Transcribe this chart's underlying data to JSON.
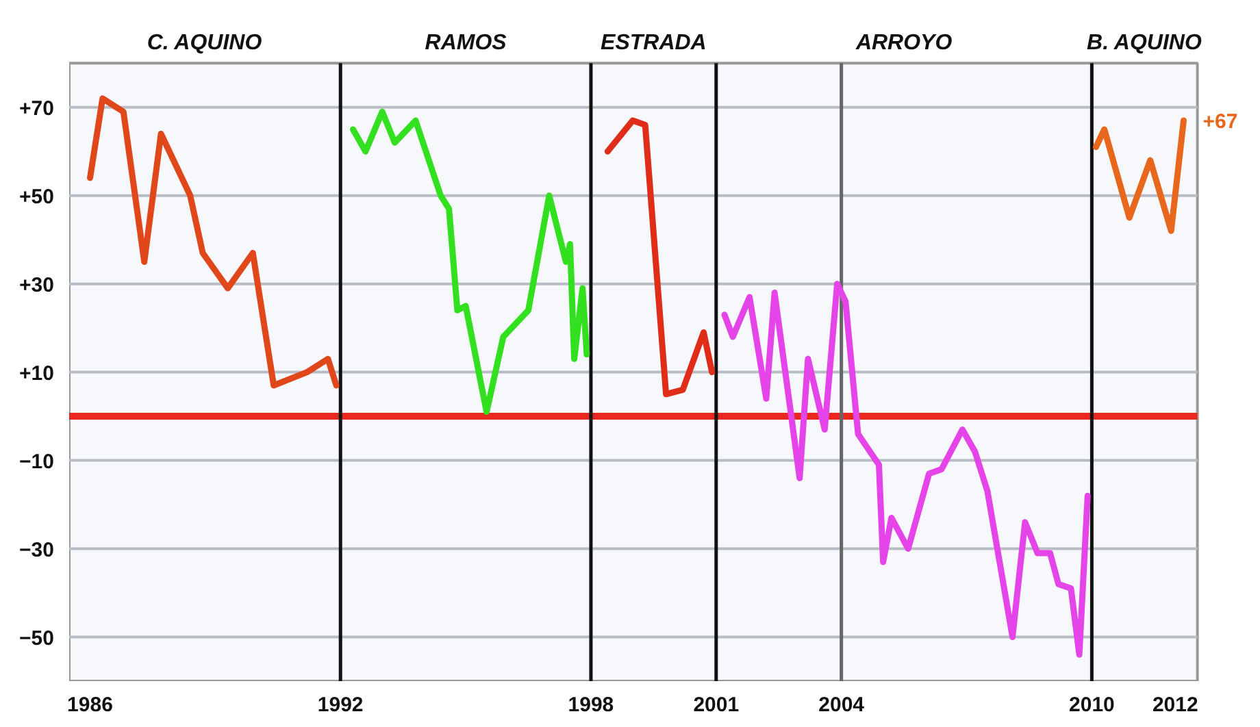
{
  "chart_data": {
    "type": "line",
    "xlim": [
      1985.5,
      2012.53
    ],
    "ylim": [
      -60,
      80
    ],
    "xticks": [
      1986,
      1992,
      1998,
      2001,
      2004,
      2010,
      2012
    ],
    "yticks": [
      {
        "value": 70,
        "label": "+70"
      },
      {
        "value": 50,
        "label": "+50"
      },
      {
        "value": 30,
        "label": "+30"
      },
      {
        "value": 10,
        "label": "+10"
      },
      -10,
      -30,
      -50
    ],
    "grid": "y",
    "line_style": "solid",
    "series": [
      {
        "color": "#e0481c",
        "x": [
          1986.0,
          1986.3,
          1986.8,
          1987.3,
          1987.7,
          1988.4,
          1988.7,
          1989.3,
          1989.9,
          1990.4,
          1991.2,
          1991.7,
          1991.9
        ],
        "values": [
          54,
          72,
          69,
          35,
          64,
          50,
          37,
          29,
          37,
          7,
          10,
          13,
          7
        ]
      },
      {
        "color": "#33e01f",
        "x": [
          1992.3,
          1992.6,
          1993.0,
          1993.3,
          1993.8,
          1994.4,
          1994.6,
          1994.8,
          1995.0,
          1995.5,
          1995.9,
          1996.5,
          1997.0,
          1997.4,
          1997.5,
          1997.6,
          1997.8,
          1997.9
        ],
        "values": [
          65,
          60,
          69,
          62,
          67,
          50,
          47,
          24,
          25,
          1,
          18,
          24,
          50,
          35,
          39,
          13,
          29,
          14
        ]
      },
      {
        "color": "#e02d1a",
        "x": [
          1998.4,
          1999.0,
          1999.3,
          1999.8,
          2000.2,
          2000.7,
          2000.9
        ],
        "values": [
          60,
          67,
          66,
          5,
          6,
          19,
          10
        ]
      },
      {
        "color": "#e444e8",
        "x": [
          2001.2,
          2001.4,
          2001.8,
          2002.2,
          2002.4,
          2003.0,
          2003.2,
          2003.6,
          2003.9,
          2004.1,
          2004.4,
          2004.9,
          2005.0,
          2005.2,
          2005.6,
          2006.1,
          2006.4,
          2006.9,
          2007.2,
          2007.5,
          2008.1,
          2008.4,
          2008.7,
          2009.0,
          2009.2,
          2009.5,
          2009.7,
          2009.9
        ],
        "values": [
          23,
          18,
          27,
          4,
          28,
          -14,
          13,
          -3,
          30,
          26,
          -4,
          -11,
          -33,
          -23,
          -30,
          -13,
          -12,
          -3,
          -8,
          -17,
          -50,
          -24,
          -31,
          -31,
          -38,
          -39,
          -54,
          -18
        ]
      },
      {
        "color": "#e8671c",
        "x": [
          2010.1,
          2010.3,
          2010.9,
          2011.4,
          2011.9,
          2012.2
        ],
        "values": [
          61,
          65,
          45,
          58,
          42,
          67
        ]
      }
    ],
    "bands": [
      {
        "axis": "x",
        "from": 1985.5,
        "to": 1992,
        "label": "C. AQUINO",
        "color": "#f6f8fc"
      },
      {
        "axis": "x",
        "from": 1992,
        "to": 1998,
        "label": "RAMOS",
        "color": "#f6f8fc"
      },
      {
        "axis": "x",
        "from": 1998,
        "to": 2001,
        "label": "ESTRADA",
        "color": "#f6f8fc"
      },
      {
        "axis": "x",
        "from": 2001,
        "to": 2010,
        "label": "ARROYO",
        "color": "#f6f8fc"
      },
      {
        "axis": "x",
        "from": 2010,
        "to": 2012.53,
        "label": "B. AQUINO",
        "color": "#f6f8fc"
      }
    ],
    "ref_lines": [
      {
        "axis": "y",
        "value": 0,
        "color": "#e8281e"
      },
      {
        "axis": "x",
        "value": 1992,
        "color": "#111111"
      },
      {
        "axis": "x",
        "value": 1998,
        "color": "#111111"
      },
      {
        "axis": "x",
        "value": 2001,
        "color": "#111111"
      },
      {
        "axis": "x",
        "value": 2004,
        "color": "#666666"
      },
      {
        "axis": "x",
        "value": 2010,
        "color": "#111111"
      }
    ],
    "annotations": [
      {
        "text": "+67",
        "x": 2012.2,
        "y": 67
      }
    ]
  }
}
